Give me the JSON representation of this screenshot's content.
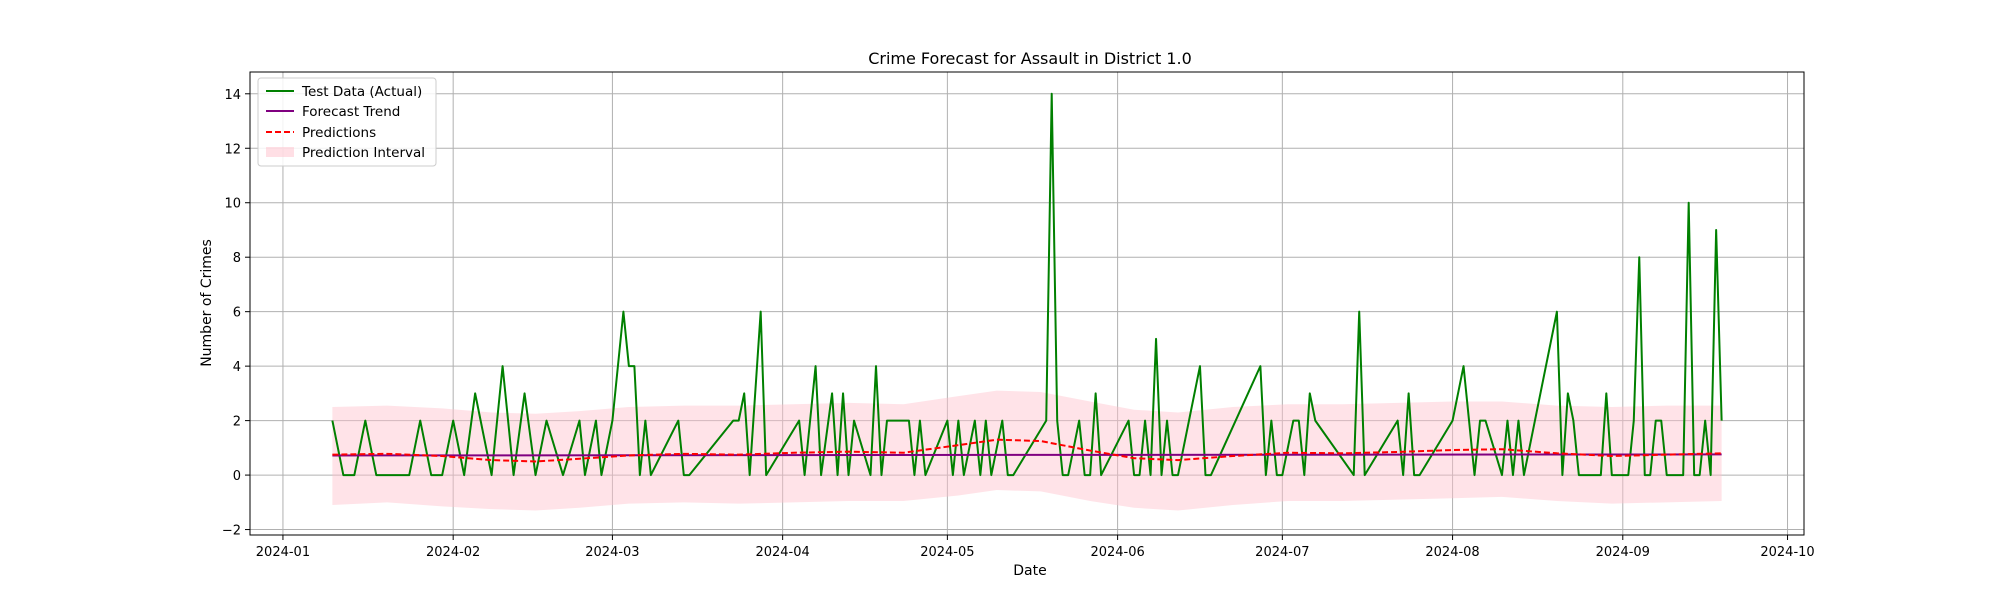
{
  "chart_data": {
    "type": "line",
    "title": "Crime Forecast for Assault in District 1.0",
    "xlabel": "Date",
    "ylabel": "Number of Crimes",
    "xlim": [
      "2023-12-26",
      "2024-10-04"
    ],
    "ylim": [
      -2.2,
      14.8
    ],
    "x_ticks": [
      "2024-01",
      "2024-02",
      "2024-03",
      "2024-04",
      "2024-05",
      "2024-06",
      "2024-07",
      "2024-08",
      "2024-09",
      "2024-10"
    ],
    "y_ticks": [
      -2,
      0,
      2,
      4,
      6,
      8,
      10,
      12,
      14
    ],
    "grid": true,
    "legend_position": "top-left",
    "legend": [
      "Test Data (Actual)",
      "Forecast Trend",
      "Predictions",
      "Prediction Interval"
    ],
    "colors": {
      "actual": "#008000",
      "trend": "#800080",
      "predictions": "#ff0000",
      "interval": "#ffc0cb"
    },
    "series": [
      {
        "name": "Test Data (Actual)",
        "x": [
          "2024-01-10",
          "2024-01-12",
          "2024-01-14",
          "2024-01-16",
          "2024-01-18",
          "2024-01-20",
          "2024-01-22",
          "2024-01-24",
          "2024-01-26",
          "2024-01-28",
          "2024-01-30",
          "2024-02-01",
          "2024-02-03",
          "2024-02-05",
          "2024-02-08",
          "2024-02-10",
          "2024-02-12",
          "2024-02-14",
          "2024-02-16",
          "2024-02-18",
          "2024-02-21",
          "2024-02-24",
          "2024-02-25",
          "2024-02-27",
          "2024-02-28",
          "2024-03-01",
          "2024-03-03",
          "2024-03-04",
          "2024-03-05",
          "2024-03-06",
          "2024-03-07",
          "2024-03-08",
          "2024-03-13",
          "2024-03-14",
          "2024-03-15",
          "2024-03-23",
          "2024-03-24",
          "2024-03-25",
          "2024-03-26",
          "2024-03-28",
          "2024-03-29",
          "2024-04-04",
          "2024-04-05",
          "2024-04-07",
          "2024-04-08",
          "2024-04-10",
          "2024-04-11",
          "2024-04-12",
          "2024-04-13",
          "2024-04-14",
          "2024-04-17",
          "2024-04-18",
          "2024-04-19",
          "2024-04-20",
          "2024-04-24",
          "2024-04-25",
          "2024-04-26",
          "2024-04-27",
          "2024-05-01",
          "2024-05-02",
          "2024-05-03",
          "2024-05-04",
          "2024-05-06",
          "2024-05-07",
          "2024-05-08",
          "2024-05-09",
          "2024-05-11",
          "2024-05-12",
          "2024-05-13",
          "2024-05-19",
          "2024-05-20",
          "2024-05-21",
          "2024-05-22",
          "2024-05-23",
          "2024-05-25",
          "2024-05-26",
          "2024-05-27",
          "2024-05-28",
          "2024-05-29",
          "2024-06-03",
          "2024-06-04",
          "2024-06-05",
          "2024-06-06",
          "2024-06-07",
          "2024-06-08",
          "2024-06-09",
          "2024-06-10",
          "2024-06-11",
          "2024-06-12",
          "2024-06-16",
          "2024-06-17",
          "2024-06-18",
          "2024-06-27",
          "2024-06-28",
          "2024-06-29",
          "2024-06-30",
          "2024-07-01",
          "2024-07-03",
          "2024-07-04",
          "2024-07-05",
          "2024-07-06",
          "2024-07-07",
          "2024-07-14",
          "2024-07-15",
          "2024-07-16",
          "2024-07-22",
          "2024-07-23",
          "2024-07-24",
          "2024-07-25",
          "2024-07-26",
          "2024-08-01",
          "2024-08-03",
          "2024-08-04",
          "2024-08-05",
          "2024-08-06",
          "2024-08-07",
          "2024-08-10",
          "2024-08-11",
          "2024-08-12",
          "2024-08-13",
          "2024-08-14",
          "2024-08-20",
          "2024-08-21",
          "2024-08-22",
          "2024-08-23",
          "2024-08-24",
          "2024-08-28",
          "2024-08-29",
          "2024-08-30",
          "2024-09-02",
          "2024-09-03",
          "2024-09-04",
          "2024-09-05",
          "2024-09-06",
          "2024-09-07",
          "2024-09-08",
          "2024-09-09",
          "2024-09-12",
          "2024-09-13",
          "2024-09-14",
          "2024-09-15",
          "2024-09-16",
          "2024-09-17",
          "2024-09-18",
          "2024-09-19"
        ],
        "values": [
          2,
          0,
          0,
          2,
          0,
          0,
          0,
          0,
          2,
          0,
          0,
          2,
          0,
          3,
          0,
          4,
          0,
          3,
          0,
          2,
          0,
          2,
          0,
          2,
          0,
          2,
          6,
          4,
          4,
          0,
          2,
          0,
          2,
          0,
          0,
          2,
          2,
          3,
          0,
          6,
          0,
          2,
          0,
          4,
          0,
          3,
          0,
          3,
          0,
          2,
          0,
          4,
          0,
          2,
          2,
          0,
          2,
          0,
          2,
          0,
          2,
          0,
          2,
          0,
          2,
          0,
          2,
          0,
          0,
          2,
          14,
          2,
          0,
          0,
          2,
          0,
          0,
          3,
          0,
          2,
          0,
          0,
          2,
          0,
          5,
          0,
          2,
          0,
          0,
          4,
          0,
          0,
          4,
          0,
          2,
          0,
          0,
          2,
          2,
          0,
          3,
          2,
          0,
          6,
          0,
          2,
          0,
          3,
          0,
          0,
          2,
          4,
          2,
          0,
          2,
          2,
          0,
          2,
          0,
          2,
          0,
          6,
          0,
          3,
          2,
          0,
          0,
          3,
          0,
          0,
          2,
          8,
          0,
          0,
          2,
          2,
          0,
          0,
          10,
          0,
          0,
          2,
          0,
          9,
          2
        ]
      },
      {
        "name": "Forecast Trend",
        "x": [
          "2024-01-10",
          "2024-09-19"
        ],
        "values": [
          0.72,
          0.76
        ]
      },
      {
        "name": "Predictions",
        "x": [
          "2024-01-10",
          "2024-01-20",
          "2024-01-30",
          "2024-02-08",
          "2024-02-16",
          "2024-02-24",
          "2024-03-04",
          "2024-03-14",
          "2024-03-24",
          "2024-04-03",
          "2024-04-13",
          "2024-04-23",
          "2024-05-03",
          "2024-05-10",
          "2024-05-18",
          "2024-05-27",
          "2024-06-04",
          "2024-06-12",
          "2024-06-22",
          "2024-07-02",
          "2024-07-12",
          "2024-07-22",
          "2024-08-01",
          "2024-08-10",
          "2024-08-20",
          "2024-08-30",
          "2024-09-09",
          "2024-09-19"
        ],
        "values": [
          0.75,
          0.78,
          0.7,
          0.55,
          0.5,
          0.6,
          0.72,
          0.78,
          0.75,
          0.82,
          0.86,
          0.82,
          1.1,
          1.3,
          1.25,
          0.9,
          0.62,
          0.55,
          0.7,
          0.82,
          0.8,
          0.85,
          0.92,
          0.95,
          0.8,
          0.7,
          0.75,
          0.8
        ]
      },
      {
        "name": "Prediction Interval",
        "x": [
          "2024-01-10",
          "2024-01-20",
          "2024-01-30",
          "2024-02-08",
          "2024-02-16",
          "2024-02-24",
          "2024-03-04",
          "2024-03-14",
          "2024-03-24",
          "2024-04-03",
          "2024-04-13",
          "2024-04-23",
          "2024-05-03",
          "2024-05-10",
          "2024-05-18",
          "2024-05-27",
          "2024-06-04",
          "2024-06-12",
          "2024-06-22",
          "2024-07-02",
          "2024-07-12",
          "2024-07-22",
          "2024-08-01",
          "2024-08-10",
          "2024-08-20",
          "2024-08-30",
          "2024-09-09",
          "2024-09-19"
        ],
        "lower": [
          -1.1,
          -1.0,
          -1.15,
          -1.25,
          -1.3,
          -1.2,
          -1.05,
          -1.0,
          -1.05,
          -1.0,
          -0.95,
          -0.95,
          -0.75,
          -0.55,
          -0.6,
          -0.95,
          -1.2,
          -1.3,
          -1.1,
          -0.95,
          -0.95,
          -0.9,
          -0.85,
          -0.8,
          -0.95,
          -1.05,
          -1.0,
          -0.95
        ],
        "upper": [
          2.5,
          2.55,
          2.45,
          2.3,
          2.25,
          2.35,
          2.5,
          2.55,
          2.55,
          2.6,
          2.65,
          2.6,
          2.9,
          3.1,
          3.05,
          2.7,
          2.4,
          2.3,
          2.5,
          2.6,
          2.6,
          2.65,
          2.7,
          2.7,
          2.55,
          2.5,
          2.55,
          2.55
        ]
      }
    ]
  }
}
